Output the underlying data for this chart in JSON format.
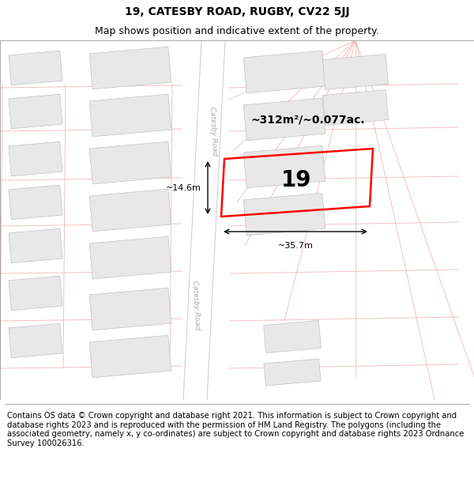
{
  "title_line1": "19, CATESBY ROAD, RUGBY, CV22 5JJ",
  "title_line2": "Map shows position and indicative extent of the property.",
  "footer_text": "Contains OS data © Crown copyright and database right 2021. This information is subject to Crown copyright and database rights 2023 and is reproduced with the permission of HM Land Registry. The polygons (including the associated geometry, namely x, y co-ordinates) are subject to Crown copyright and database rights 2023 Ordnance Survey 100026316.",
  "area_label": "~312m²/~0.077ac.",
  "number_label": "19",
  "width_label": "~35.7m",
  "height_label": "~14.6m",
  "road_label": "Catesby Road",
  "background_color": "#ffffff",
  "building_color": "#e8e8e8",
  "building_edge": "#c0c0c0",
  "road_line_color": "#f0b8b8",
  "highlight_color": "#ff0000",
  "title_fontsize": 10,
  "subtitle_fontsize": 9,
  "footer_fontsize": 7.2,
  "map_border_color": "#cccccc"
}
